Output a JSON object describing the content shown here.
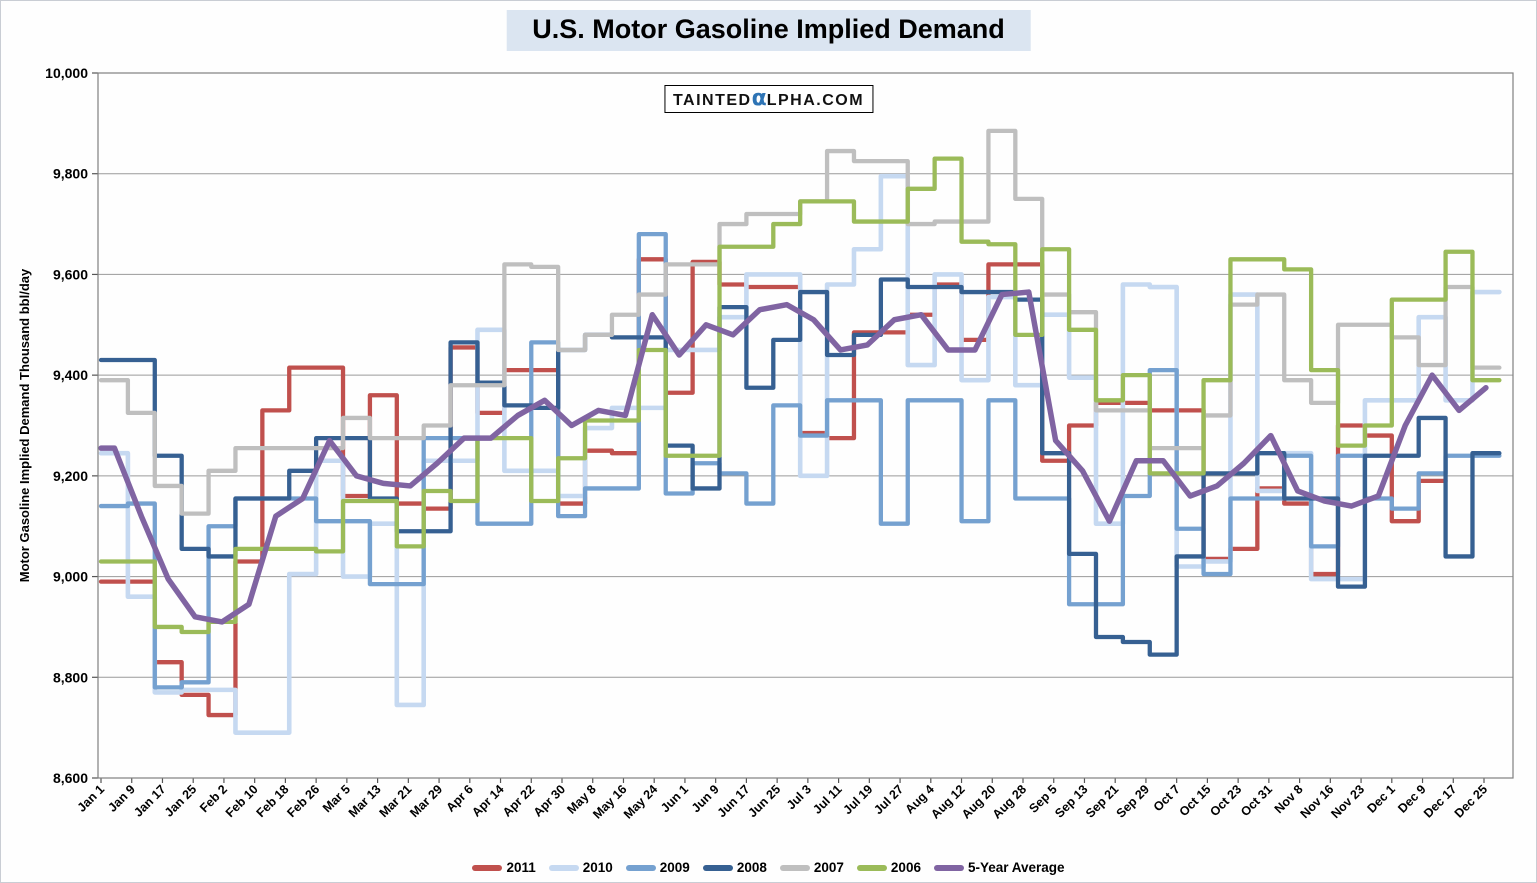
{
  "title": "U.S. Motor Gasoline Implied Demand",
  "watermark": {
    "pre": "TAINTED",
    "alpha": "α",
    "post": "LPHA.COM"
  },
  "chart_data": {
    "type": "line",
    "title": "U.S. Motor Gasoline Implied Demand",
    "ylabel": "Motor Gasoline Implied Demand Thousand bbl/day",
    "xlabel": "",
    "ylim": [
      8600,
      10000
    ],
    "y_tick_step": 200,
    "y_tick_labels": [
      "10,000",
      "9,800",
      "9,600",
      "9,400",
      "9,200",
      "9,000",
      "8,800",
      "8,600"
    ],
    "grid": true,
    "legend_position": "bottom",
    "line_style": "weekly-steps",
    "x_tick_labels": [
      "Jan 1",
      "Jan 9",
      "Jan 17",
      "Jan 25",
      "Feb 2",
      "Feb 10",
      "Feb 18",
      "Feb 26",
      "Mar 5",
      "Mar 13",
      "Mar 21",
      "Mar 29",
      "Apr 6",
      "Apr 14",
      "Apr 22",
      "Apr 30",
      "May 8",
      "May 16",
      "May 24",
      "Jun 1",
      "Jun 9",
      "Jun 17",
      "Jun 25",
      "Jul 3",
      "Jul 11",
      "Jul 19",
      "Jul 27",
      "Aug 4",
      "Aug 12",
      "Aug 20",
      "Aug 28",
      "Sep 5",
      "Sep 13",
      "Sep 21",
      "Sep 29",
      "Oct 7",
      "Oct 15",
      "Oct 23",
      "Oct 31",
      "Nov 8",
      "Nov 16",
      "Nov 23",
      "Dec 1",
      "Dec 9",
      "Dec 17",
      "Dec 25"
    ],
    "x_tick_interval_days": 8,
    "weeks_start": "Jan 1",
    "series": [
      {
        "name": "2011",
        "color": "#C0504D",
        "width": 4.3,
        "style": "step",
        "values": [
          8990,
          8990,
          8830,
          8765,
          8725,
          9030,
          9330,
          9415,
          9415,
          9160,
          9360,
          9145,
          9135,
          9455,
          9325,
          9410,
          9410,
          9145,
          9250,
          9245,
          9630,
          9365,
          9625,
          9580,
          9575,
          9575,
          9285,
          9275,
          9485,
          9485,
          9520,
          9580,
          9470,
          9620,
          9620,
          9230,
          9300,
          9345,
          9345,
          9330,
          9330,
          9035,
          9055,
          9175,
          9145,
          9005,
          9300,
          9280,
          9110,
          9190
        ]
      },
      {
        "name": "2010",
        "color": "#C6D9F1",
        "width": 4.6,
        "style": "step",
        "values": [
          9245,
          8960,
          8770,
          8775,
          8775,
          8690,
          8690,
          9005,
          9230,
          9000,
          9105,
          8745,
          9230,
          9230,
          9490,
          9210,
          9210,
          9160,
          9295,
          9335,
          9335,
          9450,
          9450,
          9515,
          9600,
          9600,
          9200,
          9580,
          9650,
          9795,
          9420,
          9600,
          9390,
          9555,
          9380,
          9520,
          9395,
          9105,
          9580,
          9575,
          9020,
          9030,
          9560,
          9170,
          9245,
          8995,
          8995,
          9350,
          9350,
          9515,
          9350,
          9565
        ]
      },
      {
        "name": "2009",
        "color": "#75A1D0",
        "width": 4.3,
        "style": "step",
        "values": [
          9140,
          9145,
          8780,
          8790,
          9100,
          9155,
          9155,
          9155,
          9110,
          9110,
          8985,
          8985,
          9275,
          9275,
          9105,
          9105,
          9465,
          9120,
          9175,
          9175,
          9680,
          9165,
          9225,
          9205,
          9145,
          9340,
          9280,
          9350,
          9350,
          9105,
          9350,
          9350,
          9110,
          9350,
          9155,
          9155,
          8945,
          8945,
          9160,
          9410,
          9095,
          9005,
          9155,
          9155,
          9240,
          9060,
          9240,
          9155,
          9135,
          9205,
          9240,
          9240
        ]
      },
      {
        "name": "2008",
        "color": "#366092",
        "width": 4.3,
        "style": "step",
        "values": [
          9430,
          9430,
          9240,
          9055,
          9040,
          9155,
          9155,
          9210,
          9275,
          9275,
          9155,
          9090,
          9090,
          9465,
          9385,
          9340,
          9335,
          9450,
          9480,
          9475,
          9475,
          9260,
          9175,
          9535,
          9375,
          9470,
          9565,
          9440,
          9480,
          9590,
          9575,
          9575,
          9565,
          9565,
          9550,
          9245,
          9045,
          8880,
          8870,
          8845,
          9040,
          9205,
          9205,
          9245,
          9155,
          9155,
          8980,
          9240,
          9240,
          9315,
          9040,
          9245
        ]
      },
      {
        "name": "2007",
        "color": "#BFBFBF",
        "width": 4.3,
        "style": "step",
        "values": [
          9390,
          9325,
          9180,
          9125,
          9210,
          9255,
          9255,
          9255,
          9255,
          9315,
          9275,
          9275,
          9300,
          9380,
          9380,
          9620,
          9615,
          9450,
          9480,
          9520,
          9560,
          9620,
          9620,
          9700,
          9720,
          9720,
          9745,
          9845,
          9825,
          9825,
          9700,
          9705,
          9705,
          9885,
          9750,
          9560,
          9525,
          9330,
          9330,
          9255,
          9255,
          9320,
          9540,
          9560,
          9390,
          9345,
          9500,
          9500,
          9475,
          9420,
          9575,
          9415
        ]
      },
      {
        "name": "2006",
        "color": "#9BBB59",
        "width": 4.3,
        "style": "step",
        "values": [
          9030,
          9030,
          8900,
          8890,
          8910,
          9055,
          9055,
          9055,
          9050,
          9150,
          9150,
          9060,
          9170,
          9150,
          9275,
          9275,
          9150,
          9235,
          9310,
          9310,
          9450,
          9240,
          9240,
          9655,
          9655,
          9700,
          9745,
          9745,
          9705,
          9705,
          9770,
          9830,
          9665,
          9660,
          9480,
          9650,
          9490,
          9350,
          9400,
          9205,
          9205,
          9390,
          9630,
          9630,
          9610,
          9410,
          9260,
          9300,
          9550,
          9550,
          9645,
          9390
        ]
      },
      {
        "name": "5-Year Average",
        "color": "#8064A2",
        "width": 5.5,
        "style": "smooth",
        "values": [
          9255,
          9120,
          8995,
          8920,
          8910,
          8945,
          9120,
          9155,
          9270,
          9200,
          9185,
          9180,
          9225,
          9275,
          9275,
          9320,
          9350,
          9300,
          9330,
          9320,
          9520,
          9440,
          9500,
          9480,
          9530,
          9540,
          9510,
          9450,
          9460,
          9510,
          9520,
          9450,
          9450,
          9560,
          9565,
          9270,
          9210,
          9110,
          9230,
          9230,
          9160,
          9180,
          9225,
          9280,
          9170,
          9150,
          9140,
          9160,
          9300,
          9400,
          9330,
          9375
        ]
      }
    ]
  }
}
